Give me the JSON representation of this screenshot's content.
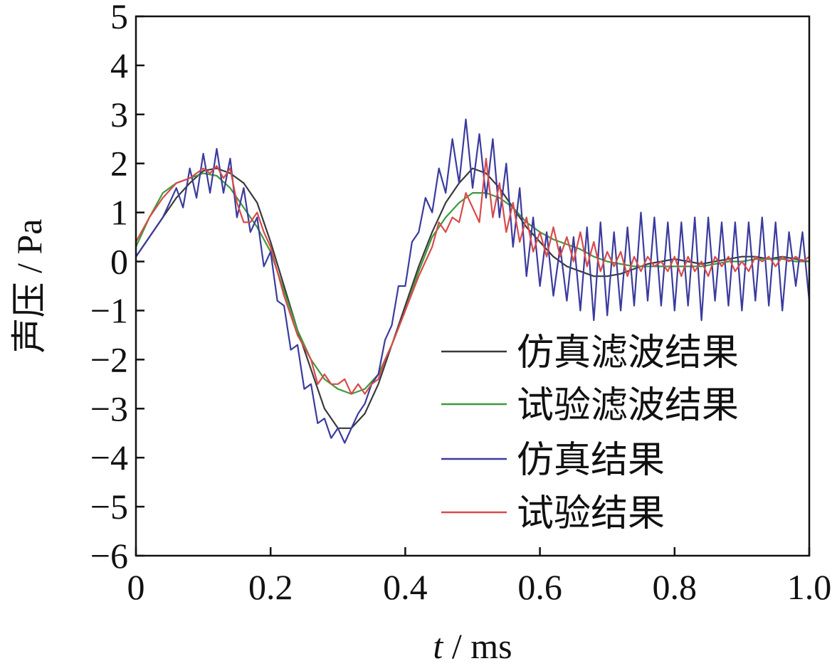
{
  "chart_data": {
    "type": "line",
    "title": "",
    "xlabel_italic": "t",
    "xlabel_rest": " / ms",
    "ylabel": "声压 / Pa",
    "xlim": [
      0,
      1.0
    ],
    "ylim": [
      -6,
      5
    ],
    "xticks": [
      0,
      0.2,
      0.4,
      0.6,
      0.8,
      1.0
    ],
    "xtick_labels": [
      "0",
      "0.2",
      "0.4",
      "0.6",
      "0.8",
      "1.0"
    ],
    "yticks": [
      5,
      4,
      3,
      2,
      1,
      0,
      -1,
      -2,
      -3,
      -4,
      -5,
      -6
    ],
    "ytick_labels": [
      "5",
      "4",
      "3",
      "2",
      "1",
      "0",
      "−1",
      "−2",
      "−3",
      "−4",
      "−5",
      "−6"
    ],
    "grid": false,
    "legend_position": "bottom-right",
    "series": [
      {
        "name": "仿真滤波结果",
        "color": "#3a3a3a",
        "x": [
          0.0,
          0.02,
          0.04,
          0.06,
          0.08,
          0.1,
          0.12,
          0.14,
          0.16,
          0.18,
          0.2,
          0.22,
          0.24,
          0.26,
          0.28,
          0.3,
          0.32,
          0.34,
          0.36,
          0.38,
          0.4,
          0.42,
          0.44,
          0.46,
          0.48,
          0.5,
          0.52,
          0.54,
          0.56,
          0.58,
          0.6,
          0.62,
          0.64,
          0.66,
          0.68,
          0.7,
          0.72,
          0.74,
          0.76,
          0.78,
          0.8,
          0.82,
          0.84,
          0.86,
          0.88,
          0.9,
          0.92,
          0.94,
          0.96,
          0.98,
          1.0
        ],
        "y": [
          0.1,
          0.5,
          0.9,
          1.3,
          1.6,
          1.85,
          1.9,
          1.8,
          1.6,
          1.2,
          0.4,
          -0.5,
          -1.4,
          -2.2,
          -3.0,
          -3.4,
          -3.4,
          -3.1,
          -2.5,
          -1.7,
          -0.9,
          -0.1,
          0.6,
          1.2,
          1.6,
          1.9,
          1.8,
          1.5,
          1.1,
          0.7,
          0.4,
          0.1,
          -0.1,
          -0.2,
          -0.3,
          -0.3,
          -0.25,
          -0.15,
          -0.05,
          0.0,
          0.05,
          0.0,
          -0.05,
          0.0,
          0.05,
          0.1,
          0.1,
          0.05,
          0.1,
          0.05,
          0.0
        ]
      },
      {
        "name": "试验滤波结果",
        "color": "#3d9a3d",
        "x": [
          0.0,
          0.02,
          0.04,
          0.06,
          0.08,
          0.1,
          0.12,
          0.14,
          0.16,
          0.18,
          0.2,
          0.22,
          0.24,
          0.26,
          0.28,
          0.3,
          0.32,
          0.34,
          0.36,
          0.38,
          0.4,
          0.42,
          0.44,
          0.46,
          0.48,
          0.5,
          0.52,
          0.54,
          0.56,
          0.58,
          0.6,
          0.62,
          0.64,
          0.66,
          0.68,
          0.7,
          0.72,
          0.74,
          0.76,
          0.78,
          0.8,
          0.82,
          0.84,
          0.86,
          0.88,
          0.9,
          0.92,
          0.94,
          0.96,
          0.98,
          1.0
        ],
        "y": [
          0.3,
          0.9,
          1.4,
          1.6,
          1.7,
          1.8,
          1.75,
          1.5,
          1.1,
          0.7,
          0.2,
          -0.6,
          -1.4,
          -2.0,
          -2.4,
          -2.6,
          -2.7,
          -2.6,
          -2.3,
          -1.7,
          -1.0,
          -0.2,
          0.5,
          0.9,
          1.2,
          1.4,
          1.4,
          1.3,
          1.1,
          0.8,
          0.6,
          0.45,
          0.35,
          0.25,
          0.1,
          0.0,
          -0.05,
          -0.1,
          -0.1,
          -0.1,
          -0.1,
          -0.1,
          -0.1,
          -0.05,
          0.0,
          0.0,
          0.05,
          0.05,
          0.05,
          0.0,
          0.0
        ]
      },
      {
        "name": "仿真结果",
        "color": "#3b3b9e",
        "x": [
          0.0,
          0.02,
          0.04,
          0.05,
          0.06,
          0.07,
          0.08,
          0.09,
          0.1,
          0.11,
          0.12,
          0.13,
          0.14,
          0.15,
          0.16,
          0.17,
          0.18,
          0.19,
          0.2,
          0.21,
          0.22,
          0.23,
          0.24,
          0.25,
          0.26,
          0.27,
          0.28,
          0.29,
          0.3,
          0.31,
          0.32,
          0.33,
          0.34,
          0.35,
          0.36,
          0.37,
          0.38,
          0.39,
          0.4,
          0.41,
          0.42,
          0.43,
          0.44,
          0.45,
          0.46,
          0.47,
          0.48,
          0.49,
          0.5,
          0.51,
          0.52,
          0.53,
          0.54,
          0.55,
          0.56,
          0.57,
          0.58,
          0.59,
          0.6,
          0.61,
          0.62,
          0.63,
          0.64,
          0.65,
          0.66,
          0.67,
          0.68,
          0.69,
          0.7,
          0.71,
          0.72,
          0.73,
          0.74,
          0.75,
          0.76,
          0.77,
          0.78,
          0.79,
          0.8,
          0.81,
          0.82,
          0.83,
          0.84,
          0.85,
          0.86,
          0.87,
          0.88,
          0.89,
          0.9,
          0.91,
          0.92,
          0.93,
          0.94,
          0.95,
          0.96,
          0.97,
          0.98,
          0.99,
          1.0
        ],
        "y": [
          0.1,
          0.5,
          0.9,
          1.2,
          1.5,
          1.1,
          1.9,
          1.3,
          2.2,
          1.4,
          2.3,
          1.4,
          2.1,
          0.9,
          1.5,
          0.6,
          0.9,
          -0.1,
          0.2,
          -0.8,
          -0.9,
          -1.8,
          -1.7,
          -2.6,
          -2.5,
          -3.3,
          -3.2,
          -3.6,
          -3.4,
          -3.7,
          -3.4,
          -3.1,
          -2.9,
          -2.5,
          -2.3,
          -1.6,
          -1.3,
          -0.5,
          -0.5,
          0.4,
          0.6,
          1.3,
          1.0,
          1.9,
          1.4,
          2.5,
          1.6,
          2.9,
          1.5,
          2.6,
          1.3,
          2.5,
          0.9,
          2.0,
          0.3,
          1.5,
          -0.3,
          0.9,
          -0.5,
          0.6,
          -0.7,
          0.3,
          -0.8,
          0.5,
          -1.0,
          0.7,
          -1.2,
          0.8,
          -1.1,
          0.6,
          -1.0,
          0.7,
          -0.9,
          1.0,
          -0.8,
          0.9,
          -0.9,
          0.8,
          -1.0,
          0.8,
          -0.9,
          0.9,
          -1.2,
          0.9,
          -0.8,
          0.8,
          -0.9,
          0.8,
          -1.0,
          0.8,
          -0.8,
          0.9,
          -0.9,
          0.8,
          -1.0,
          0.6,
          -0.5,
          0.6,
          -0.8
        ]
      },
      {
        "name": "试验结果",
        "color": "#d94a4a",
        "x": [
          0.0,
          0.02,
          0.04,
          0.06,
          0.08,
          0.1,
          0.11,
          0.12,
          0.13,
          0.14,
          0.15,
          0.16,
          0.17,
          0.18,
          0.19,
          0.2,
          0.22,
          0.24,
          0.26,
          0.27,
          0.28,
          0.29,
          0.3,
          0.31,
          0.32,
          0.33,
          0.34,
          0.35,
          0.36,
          0.37,
          0.38,
          0.4,
          0.42,
          0.44,
          0.45,
          0.46,
          0.47,
          0.48,
          0.49,
          0.5,
          0.51,
          0.52,
          0.53,
          0.54,
          0.55,
          0.56,
          0.57,
          0.58,
          0.59,
          0.6,
          0.61,
          0.62,
          0.63,
          0.64,
          0.65,
          0.66,
          0.67,
          0.68,
          0.69,
          0.7,
          0.71,
          0.72,
          0.73,
          0.74,
          0.75,
          0.76,
          0.77,
          0.78,
          0.79,
          0.8,
          0.81,
          0.82,
          0.83,
          0.84,
          0.85,
          0.86,
          0.87,
          0.88,
          0.89,
          0.9,
          0.91,
          0.92,
          0.93,
          0.94,
          0.95,
          0.96,
          0.97,
          0.98,
          0.99,
          1.0
        ],
        "y": [
          0.4,
          0.9,
          1.3,
          1.6,
          1.7,
          1.9,
          1.8,
          1.95,
          1.7,
          1.9,
          1.2,
          0.8,
          0.8,
          1.0,
          0.6,
          0.3,
          -0.7,
          -1.5,
          -2.0,
          -2.5,
          -2.3,
          -2.5,
          -2.5,
          -2.4,
          -2.7,
          -2.5,
          -2.7,
          -2.5,
          -2.4,
          -2.0,
          -1.7,
          -1.0,
          -0.3,
          0.3,
          0.8,
          0.6,
          0.9,
          0.8,
          1.4,
          1.1,
          0.8,
          2.1,
          0.9,
          1.6,
          0.6,
          1.2,
          0.4,
          0.9,
          0.2,
          0.6,
          0.1,
          0.7,
          0.1,
          0.5,
          0.0,
          0.6,
          -0.1,
          0.4,
          -0.2,
          0.2,
          -0.1,
          0.2,
          -0.3,
          0.1,
          -0.2,
          0.1,
          -0.1,
          0.0,
          -0.2,
          0.1,
          -0.3,
          0.1,
          -0.2,
          0.0,
          -0.3,
          0.1,
          -0.1,
          0.1,
          -0.2,
          0.0,
          -0.2,
          0.1,
          0.0,
          0.1,
          -0.1,
          0.1,
          0.0,
          0.1,
          0.0,
          0.1
        ]
      }
    ]
  }
}
